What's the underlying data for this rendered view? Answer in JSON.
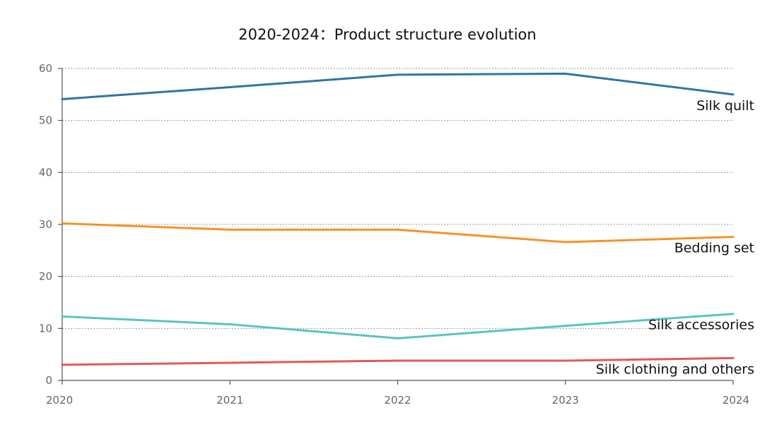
{
  "chart_data": {
    "type": "line",
    "title": "2020-2024：Product structure evolution",
    "xlabel": "",
    "ylabel": "",
    "categories": [
      "2020",
      "2021",
      "2022",
      "2023",
      "2024"
    ],
    "ylim": [
      0,
      60
    ],
    "yticks": [
      0,
      10,
      20,
      30,
      40,
      50,
      60
    ],
    "grid": true,
    "series": [
      {
        "name": "Silk quilt",
        "color": "#2e75a6",
        "values": [
          54.1,
          56.4,
          58.8,
          59.0,
          55.0
        ]
      },
      {
        "name": "Bedding set",
        "color": "#f5922a",
        "values": [
          30.2,
          29.0,
          29.0,
          26.6,
          27.6
        ]
      },
      {
        "name": "Silk accessories",
        "color": "#5bc3c3",
        "values": [
          12.3,
          10.8,
          8.1,
          10.5,
          12.8
        ]
      },
      {
        "name": "Silk clothing and others",
        "color": "#e05a5a",
        "values": [
          3.0,
          3.4,
          3.8,
          3.8,
          4.3
        ]
      }
    ]
  }
}
